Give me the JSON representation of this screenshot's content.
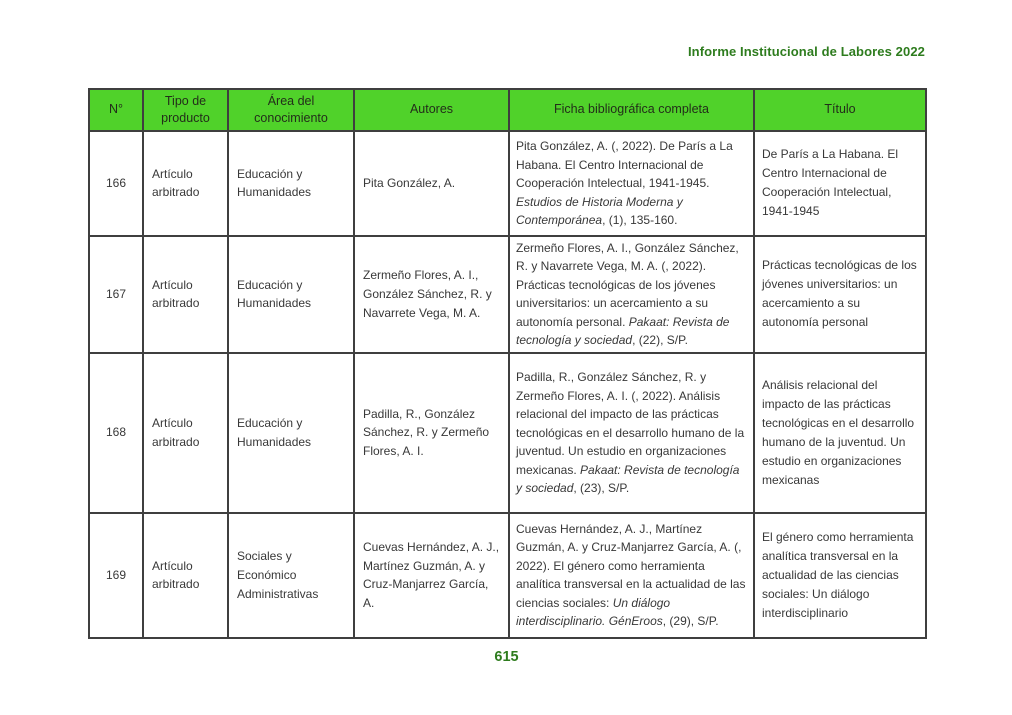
{
  "document_header": "Informe Institucional de Labores 2022",
  "page_number": "615",
  "colors": {
    "table_header_green": "#50d22a",
    "accent_green": "#2e7c1e",
    "border_gray": "#3f3f3f",
    "body_text": "#383838"
  },
  "table": {
    "columns": [
      "N°",
      "Tipo de producto",
      "Área del conocimiento",
      "Autores",
      "Ficha bibliográfica completa",
      "Título"
    ],
    "rows": [
      {
        "num": "166",
        "tipo": "Artículo arbitrado",
        "area": "Educación y Humanidades",
        "autores": "Pita González, A.",
        "ficha_segments": [
          {
            "t": "Pita González, A. (, 2022). De París a La Habana. El Centro Internacional de Cooperación Intelectual, 1941-1945. ",
            "i": false
          },
          {
            "t": "Estudios de Historia Moderna y Contemporánea",
            "i": true
          },
          {
            "t": ", (1), 135-160.",
            "i": false
          }
        ],
        "titulo": "De París a La Habana. El Centro Internacional de Cooperación Intelectual, 1941-1945"
      },
      {
        "num": "167",
        "tipo": "Artículo arbitrado",
        "area": "Educación y Humanidades",
        "autores": "Zermeño Flores, A. I., González Sánchez, R. y Navarrete Vega, M. A.",
        "ficha_segments": [
          {
            "t": "Zermeño Flores, A. I., González Sánchez, R. y Navarrete Vega, M. A. (, 2022). Prácticas tecnológicas de los jóvenes universitarios: un acercamiento a su autonomía personal. ",
            "i": false
          },
          {
            "t": "Pakaat: Revista de tecnología y sociedad",
            "i": true
          },
          {
            "t": ", (22), S/P.",
            "i": false
          }
        ],
        "titulo": "Prácticas tecnológicas de los jóvenes universitarios: un acercamiento a su autonomía personal"
      },
      {
        "num": "168",
        "tipo": "Artículo arbitrado",
        "area": "Educación y Humanidades",
        "autores": "Padilla, R., González Sánchez, R. y Zermeño Flores, A. I.",
        "ficha_segments": [
          {
            "t": "Padilla, R., González Sánchez, R. y Zermeño Flores, A. I. (, 2022). Análisis relacional del impacto de las prácticas tecnológicas en el desarrollo humano de la juventud. Un estudio en organizaciones mexicanas. ",
            "i": false
          },
          {
            "t": "Pakaat: Revista de tecnología y sociedad",
            "i": true
          },
          {
            "t": ", (23), S/P.",
            "i": false
          }
        ],
        "titulo": "Análisis relacional del impacto de las prácticas tecnológicas en el desarrollo humano de la juventud. Un estudio en organizaciones mexicanas"
      },
      {
        "num": "169",
        "tipo": "Artículo arbitrado",
        "area": "Sociales y Económico Administrativas",
        "autores": "Cuevas Hernández, A. J., Martínez Guzmán, A. y Cruz-Manjarrez García, A.",
        "ficha_segments": [
          {
            "t": "Cuevas Hernández, A. J., Martínez Guzmán, A. y Cruz-Manjarrez García, A. (, 2022). El género como herramienta analítica transversal en la actualidad de las ciencias sociales: ",
            "i": false
          },
          {
            "t": "Un diálogo interdisciplinario. GénEroos",
            "i": true
          },
          {
            "t": ", (29), S/P.",
            "i": false
          }
        ],
        "titulo": "El género como herramienta analítica transversal en la actualidad de las ciencias sociales: Un diálogo interdisciplinario"
      }
    ]
  }
}
